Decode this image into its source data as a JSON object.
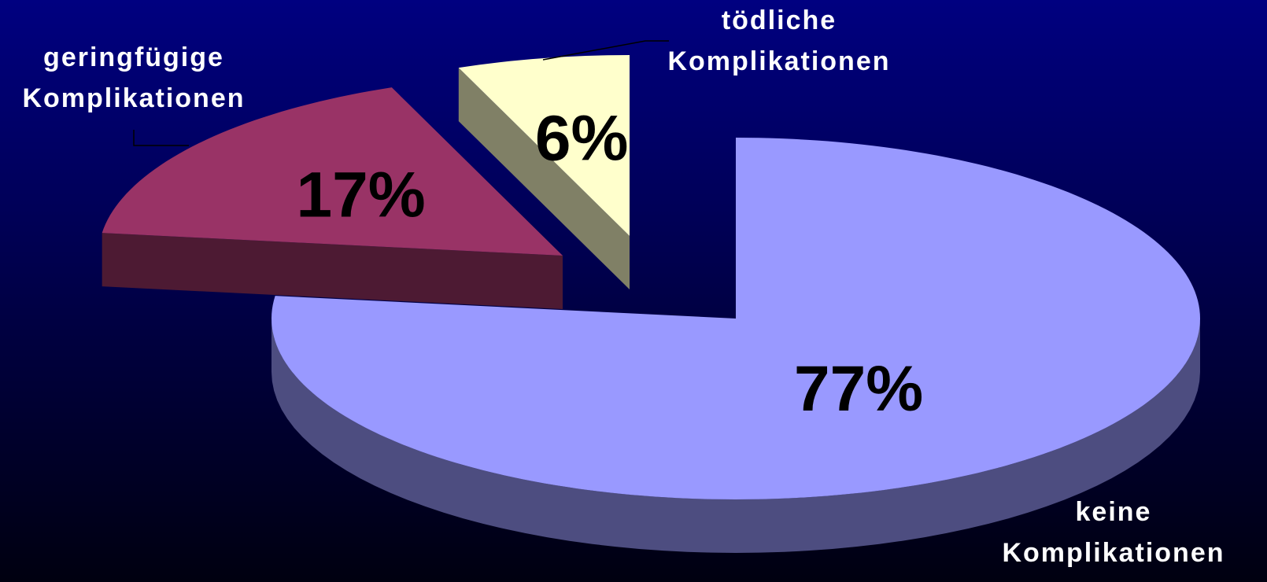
{
  "chart_data": {
    "type": "pie3d",
    "categories": [
      "keine Komplikationen",
      "geringfügige Komplikationen",
      "tödliche Komplikationen"
    ],
    "values": [
      77,
      17,
      6
    ],
    "value_labels": [
      "77%",
      "17%",
      "6%"
    ],
    "colors": [
      "#9999ff",
      "#993366",
      "#ffffcc"
    ]
  }
}
